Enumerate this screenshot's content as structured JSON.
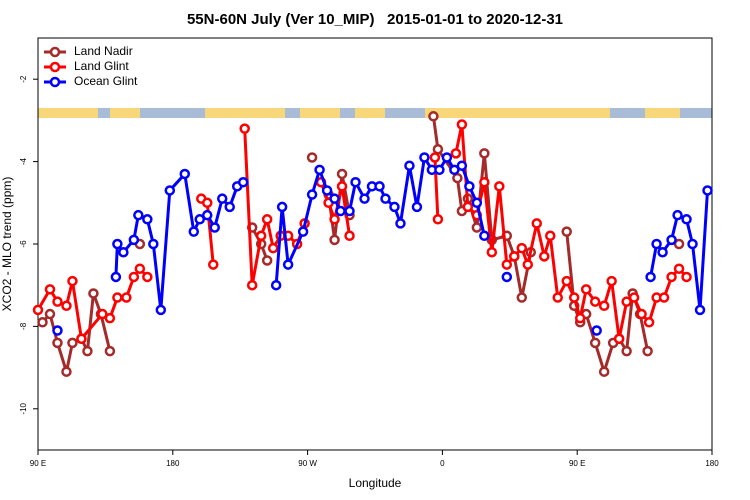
{
  "chart_data": {
    "type": "line",
    "title": "55N-60N July (Ver 10_MIP)   2015-01-01 to 2020-12-31",
    "x_label": "Longitude",
    "y_label": "XCO2 - MLO trend (ppm)",
    "xlim": [
      90,
      540
    ],
    "ylim": [
      -11,
      -1
    ],
    "xticks": [
      {
        "value": 90,
        "label": "90 E"
      },
      180,
      {
        "value": 270,
        "label": "90 W"
      },
      0,
      {
        "value": 450,
        "label": "90 E"
      },
      {
        "value": 540,
        "label": "180"
      }
    ],
    "yticks": [
      -2,
      -4,
      -6,
      -8,
      -10
    ],
    "legend": "top-left",
    "series": [
      {
        "name": "Land Nadir",
        "color": "#a52a2a",
        "x": [
          93,
          98,
          103,
          109,
          113,
          119,
          123,
          127,
          132,
          138,
          null,
          158,
          null,
          233,
          239,
          243,
          null,
          273,
          null,
          284,
          288,
          293,
          298,
          null,
          354,
          357,
          370,
          373,
          377,
          383,
          388,
          393,
          403,
          408,
          413,
          419,
          null,
          443,
          448,
          452,
          456,
          462,
          468,
          474,
          478,
          483,
          487,
          492,
          497,
          null,
          518
        ],
        "values": [
          -7.9,
          -7.7,
          -8.4,
          -9.1,
          -8.4,
          -8.3,
          -8.6,
          -7.2,
          -7.7,
          -8.6,
          null,
          -6.0,
          null,
          -5.6,
          -6.0,
          -6.4,
          null,
          -3.9,
          null,
          -4.8,
          -5.9,
          -4.3,
          -5.3,
          null,
          -2.9,
          -3.7,
          -4.4,
          -5.2,
          -4.9,
          -5.6,
          -3.8,
          -5.9,
          -5.8,
          -6.3,
          -7.3,
          -6.2,
          null,
          -5.7,
          -7.5,
          -7.9,
          -7.7,
          -8.4,
          -9.1,
          -8.4,
          -8.3,
          -8.6,
          -7.2,
          -7.7,
          -8.6,
          null,
          -6.0
        ]
      },
      {
        "name": "Land Glint",
        "color": "#ff0000",
        "x": [
          90,
          98,
          103,
          109,
          113,
          119,
          133,
          138,
          143,
          149,
          154,
          158,
          163,
          null,
          199,
          203,
          207,
          null,
          228,
          233,
          239,
          243,
          247,
          252,
          257,
          263,
          268,
          null,
          279,
          284,
          288,
          293,
          298,
          null,
          355,
          357,
          null,
          369,
          373,
          377,
          383,
          388,
          393,
          398,
          403,
          408,
          413,
          417,
          423,
          428,
          432,
          437,
          443,
          448,
          452,
          456,
          462,
          468,
          473,
          478,
          483,
          488,
          493,
          498,
          503,
          508,
          513,
          518,
          523
        ],
        "values": [
          -7.6,
          -7.1,
          -7.4,
          -7.5,
          -6.9,
          -8.3,
          -7.7,
          -7.8,
          -7.3,
          -7.3,
          -6.8,
          -6.6,
          -6.8,
          null,
          -4.9,
          -5.0,
          -6.5,
          null,
          -3.2,
          -7.0,
          -5.8,
          -5.4,
          -6.1,
          -5.8,
          -5.8,
          -6.0,
          -5.5,
          null,
          -4.5,
          -5.0,
          -5.4,
          -4.6,
          -5.8,
          null,
          -3.9,
          -5.4,
          null,
          -3.8,
          -3.1,
          -5.1,
          -5.3,
          -4.5,
          -6.2,
          -4.6,
          -6.5,
          -6.3,
          -6.1,
          -6.5,
          -5.5,
          -6.3,
          -5.8,
          -7.3,
          -6.9,
          -7.3,
          -7.8,
          -7.1,
          -7.4,
          -7.5,
          -6.9,
          -8.3,
          -7.4,
          -7.3,
          -7.7,
          -7.9,
          -7.3,
          -7.3,
          -6.8,
          -6.6,
          -6.8
        ]
      },
      {
        "name": "Ocean Glint",
        "color": "#0000ff",
        "x": [
          103,
          null,
          142,
          143,
          147,
          154,
          157,
          163,
          167,
          172,
          178,
          188,
          194,
          198,
          203,
          208,
          213,
          218,
          223,
          227,
          null,
          249,
          253,
          257,
          267,
          273,
          278,
          283,
          288,
          292,
          298,
          302,
          308,
          313,
          318,
          322,
          328,
          332,
          338,
          343,
          348,
          353,
          358,
          363,
          368,
          373,
          378,
          383,
          388,
          null,
          403,
          null,
          463,
          null,
          499,
          503,
          507,
          513,
          517,
          523,
          527,
          532,
          537
        ],
        "values": [
          -8.1,
          null,
          -6.8,
          -6.0,
          -6.2,
          -5.9,
          -5.3,
          -5.4,
          -6.0,
          -7.6,
          -4.7,
          -4.3,
          -5.7,
          -5.4,
          -5.3,
          -5.6,
          -4.9,
          -5.1,
          -4.6,
          -4.5,
          null,
          -7.0,
          -5.1,
          -6.5,
          -5.7,
          -4.8,
          -4.2,
          -4.7,
          -4.9,
          -5.2,
          -5.2,
          -4.5,
          -4.9,
          -4.6,
          -4.6,
          -4.9,
          -5.1,
          -5.5,
          -4.1,
          -5.1,
          -3.9,
          -4.2,
          -4.2,
          -3.9,
          -4.2,
          -4.1,
          -4.6,
          -5.0,
          -5.8,
          null,
          -6.8,
          null,
          -8.1,
          null,
          -6.8,
          -6.0,
          -6.2,
          -5.9,
          -5.3,
          -5.4,
          -6.0,
          -7.6,
          -4.7
        ]
      }
    ]
  }
}
